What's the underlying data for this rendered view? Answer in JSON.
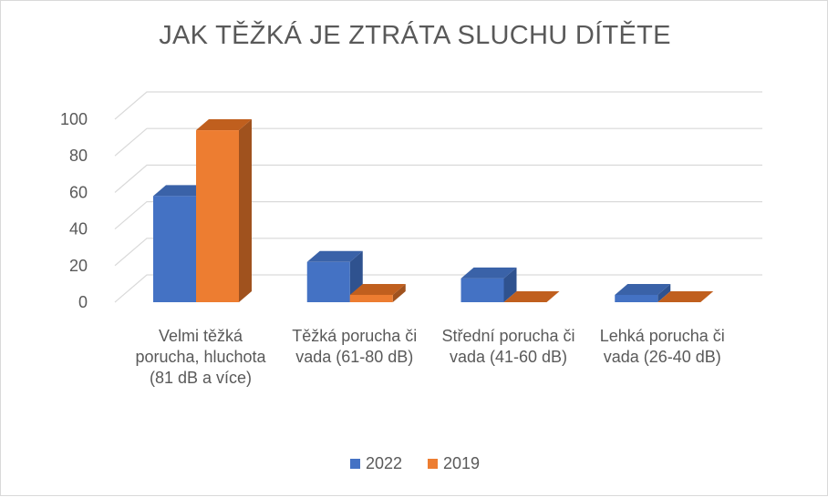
{
  "chart_data": {
    "type": "bar",
    "title": "JAK TĚŽKÁ JE ZTRÁTA SLUCHU DÍTĚTE",
    "categories": [
      "Velmi těžká porucha, hluchota (81 dB a více)",
      "Těžká porucha či vada (61-80 dB)",
      "Střední porucha či vada (41-60 dB)",
      "Lehká porucha či vada (26-40 dB)"
    ],
    "series": [
      {
        "name": "2022",
        "values": [
          58,
          22,
          13,
          4
        ],
        "color": "#4472C4",
        "side_color": "#2F528F",
        "top_color": "#3A62A8"
      },
      {
        "name": "2019",
        "values": [
          94,
          4,
          0,
          0
        ],
        "color": "#ED7D31",
        "side_color": "#A0521E",
        "top_color": "#C05F1E"
      }
    ],
    "yticks": [
      0,
      20,
      40,
      60,
      80,
      100
    ],
    "ylim": [
      0,
      100
    ],
    "grid": true,
    "three_d": true,
    "legend_position": "bottom"
  }
}
